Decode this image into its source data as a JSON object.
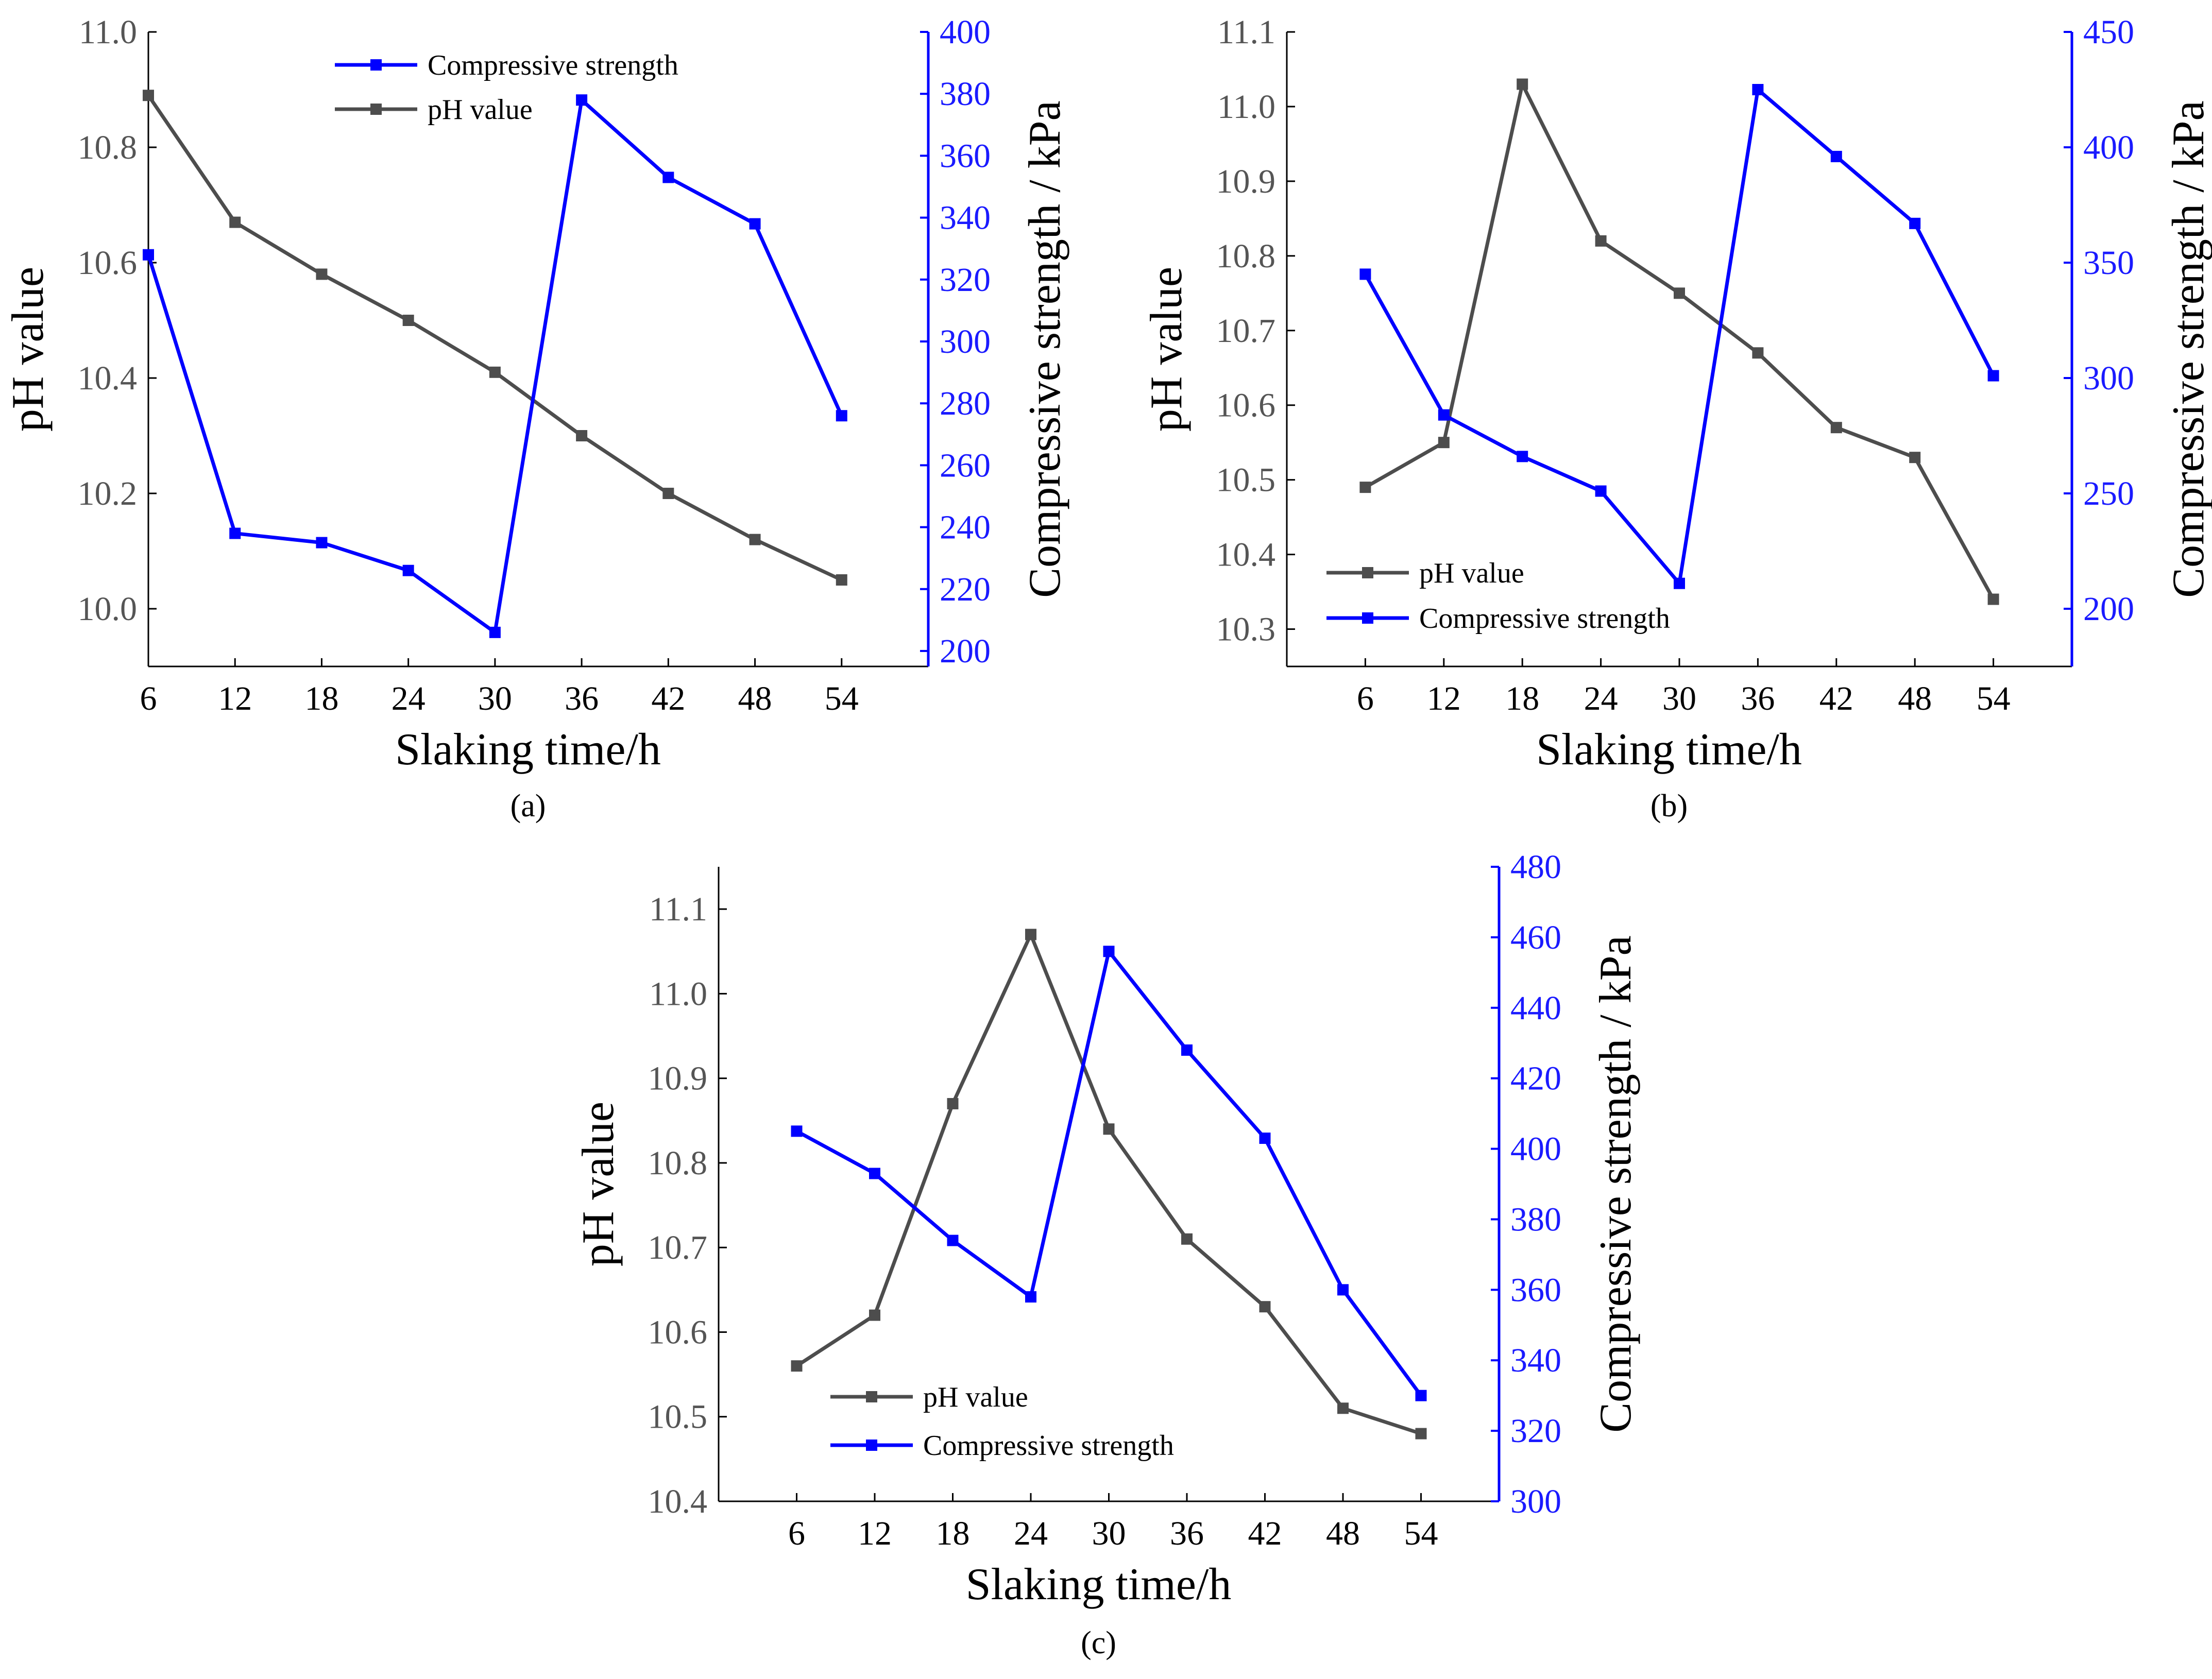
{
  "colors": {
    "ph": "#4d4d4d",
    "strength": "#0000ff",
    "axis": "#000000"
  },
  "chart_data": [
    {
      "type": "line",
      "caption": "(a)",
      "xlabel": "Slaking time/h",
      "ylabel_left": "pH value",
      "ylabel_right": "Compressive strength / kPa",
      "x": [
        6,
        12,
        18,
        24,
        30,
        36,
        42,
        48,
        54
      ],
      "xticks": [
        "6",
        "12",
        "18",
        "24",
        "30",
        "36",
        "42",
        "48",
        "54"
      ],
      "ylim_left": [
        9.9,
        11.0
      ],
      "yticks_left": [
        "10.0",
        "10.2",
        "10.4",
        "10.6",
        "10.8",
        "11.0"
      ],
      "ylim_right": [
        195,
        400
      ],
      "yticks_right": [
        "200",
        "220",
        "240",
        "260",
        "280",
        "300",
        "320",
        "340",
        "360",
        "380",
        "400"
      ],
      "legend_order": [
        "strength",
        "ph"
      ],
      "series": [
        {
          "key": "ph",
          "name": "pH value",
          "axis": "left",
          "values": [
            10.89,
            10.67,
            10.58,
            10.5,
            10.41,
            10.3,
            10.2,
            10.12,
            10.05
          ]
        },
        {
          "key": "strength",
          "name": "Compressive strength",
          "axis": "right",
          "values": [
            328,
            238,
            235,
            226,
            206,
            378,
            353,
            338,
            276
          ]
        }
      ]
    },
    {
      "type": "line",
      "caption": "(b)",
      "xlabel": "Slaking time/h",
      "ylabel_left": "pH value",
      "ylabel_right": "Compressive strength / kPa",
      "x": [
        6,
        12,
        18,
        24,
        30,
        36,
        42,
        48,
        54
      ],
      "xticks": [
        "6",
        "12",
        "18",
        "24",
        "30",
        "36",
        "42",
        "48",
        "54"
      ],
      "ylim_left": [
        10.25,
        11.1
      ],
      "yticks_left": [
        "10.3",
        "10.4",
        "10.5",
        "10.6",
        "10.7",
        "10.8",
        "10.9",
        "11.0",
        "11.1"
      ],
      "ylim_right": [
        175,
        450
      ],
      "yticks_right": [
        "200",
        "250",
        "300",
        "350",
        "400",
        "450"
      ],
      "legend_order": [
        "ph",
        "strength"
      ],
      "series": [
        {
          "key": "ph",
          "name": "pH value",
          "axis": "left",
          "values": [
            10.49,
            10.55,
            11.03,
            10.82,
            10.75,
            10.67,
            10.57,
            10.53,
            10.34
          ]
        },
        {
          "key": "strength",
          "name": "Compressive strength",
          "axis": "right",
          "values": [
            345,
            284,
            266,
            251,
            211,
            425,
            396,
            367,
            301
          ]
        }
      ]
    },
    {
      "type": "line",
      "caption": "(c)",
      "xlabel": "Slaking time/h",
      "ylabel_left": "pH value",
      "ylabel_right": "Compressive strength / kPa",
      "x": [
        6,
        12,
        18,
        24,
        30,
        36,
        42,
        48,
        54
      ],
      "xticks": [
        "6",
        "12",
        "18",
        "24",
        "30",
        "36",
        "42",
        "48",
        "54"
      ],
      "ylim_left": [
        10.4,
        11.15
      ],
      "yticks_left": [
        "10.4",
        "10.5",
        "10.6",
        "10.7",
        "10.8",
        "10.9",
        "11.0",
        "11.1"
      ],
      "ylim_right": [
        300,
        480
      ],
      "yticks_right": [
        "300",
        "320",
        "340",
        "360",
        "380",
        "400",
        "420",
        "440",
        "460",
        "480"
      ],
      "legend_order": [
        "ph",
        "strength"
      ],
      "series": [
        {
          "key": "ph",
          "name": "pH value",
          "axis": "left",
          "values": [
            10.56,
            10.62,
            10.87,
            11.07,
            10.84,
            10.71,
            10.63,
            10.51,
            10.48
          ]
        },
        {
          "key": "strength",
          "name": "Compressive strength",
          "axis": "right",
          "values": [
            405,
            393,
            374,
            358,
            456,
            428,
            403,
            360,
            330
          ]
        }
      ]
    }
  ]
}
